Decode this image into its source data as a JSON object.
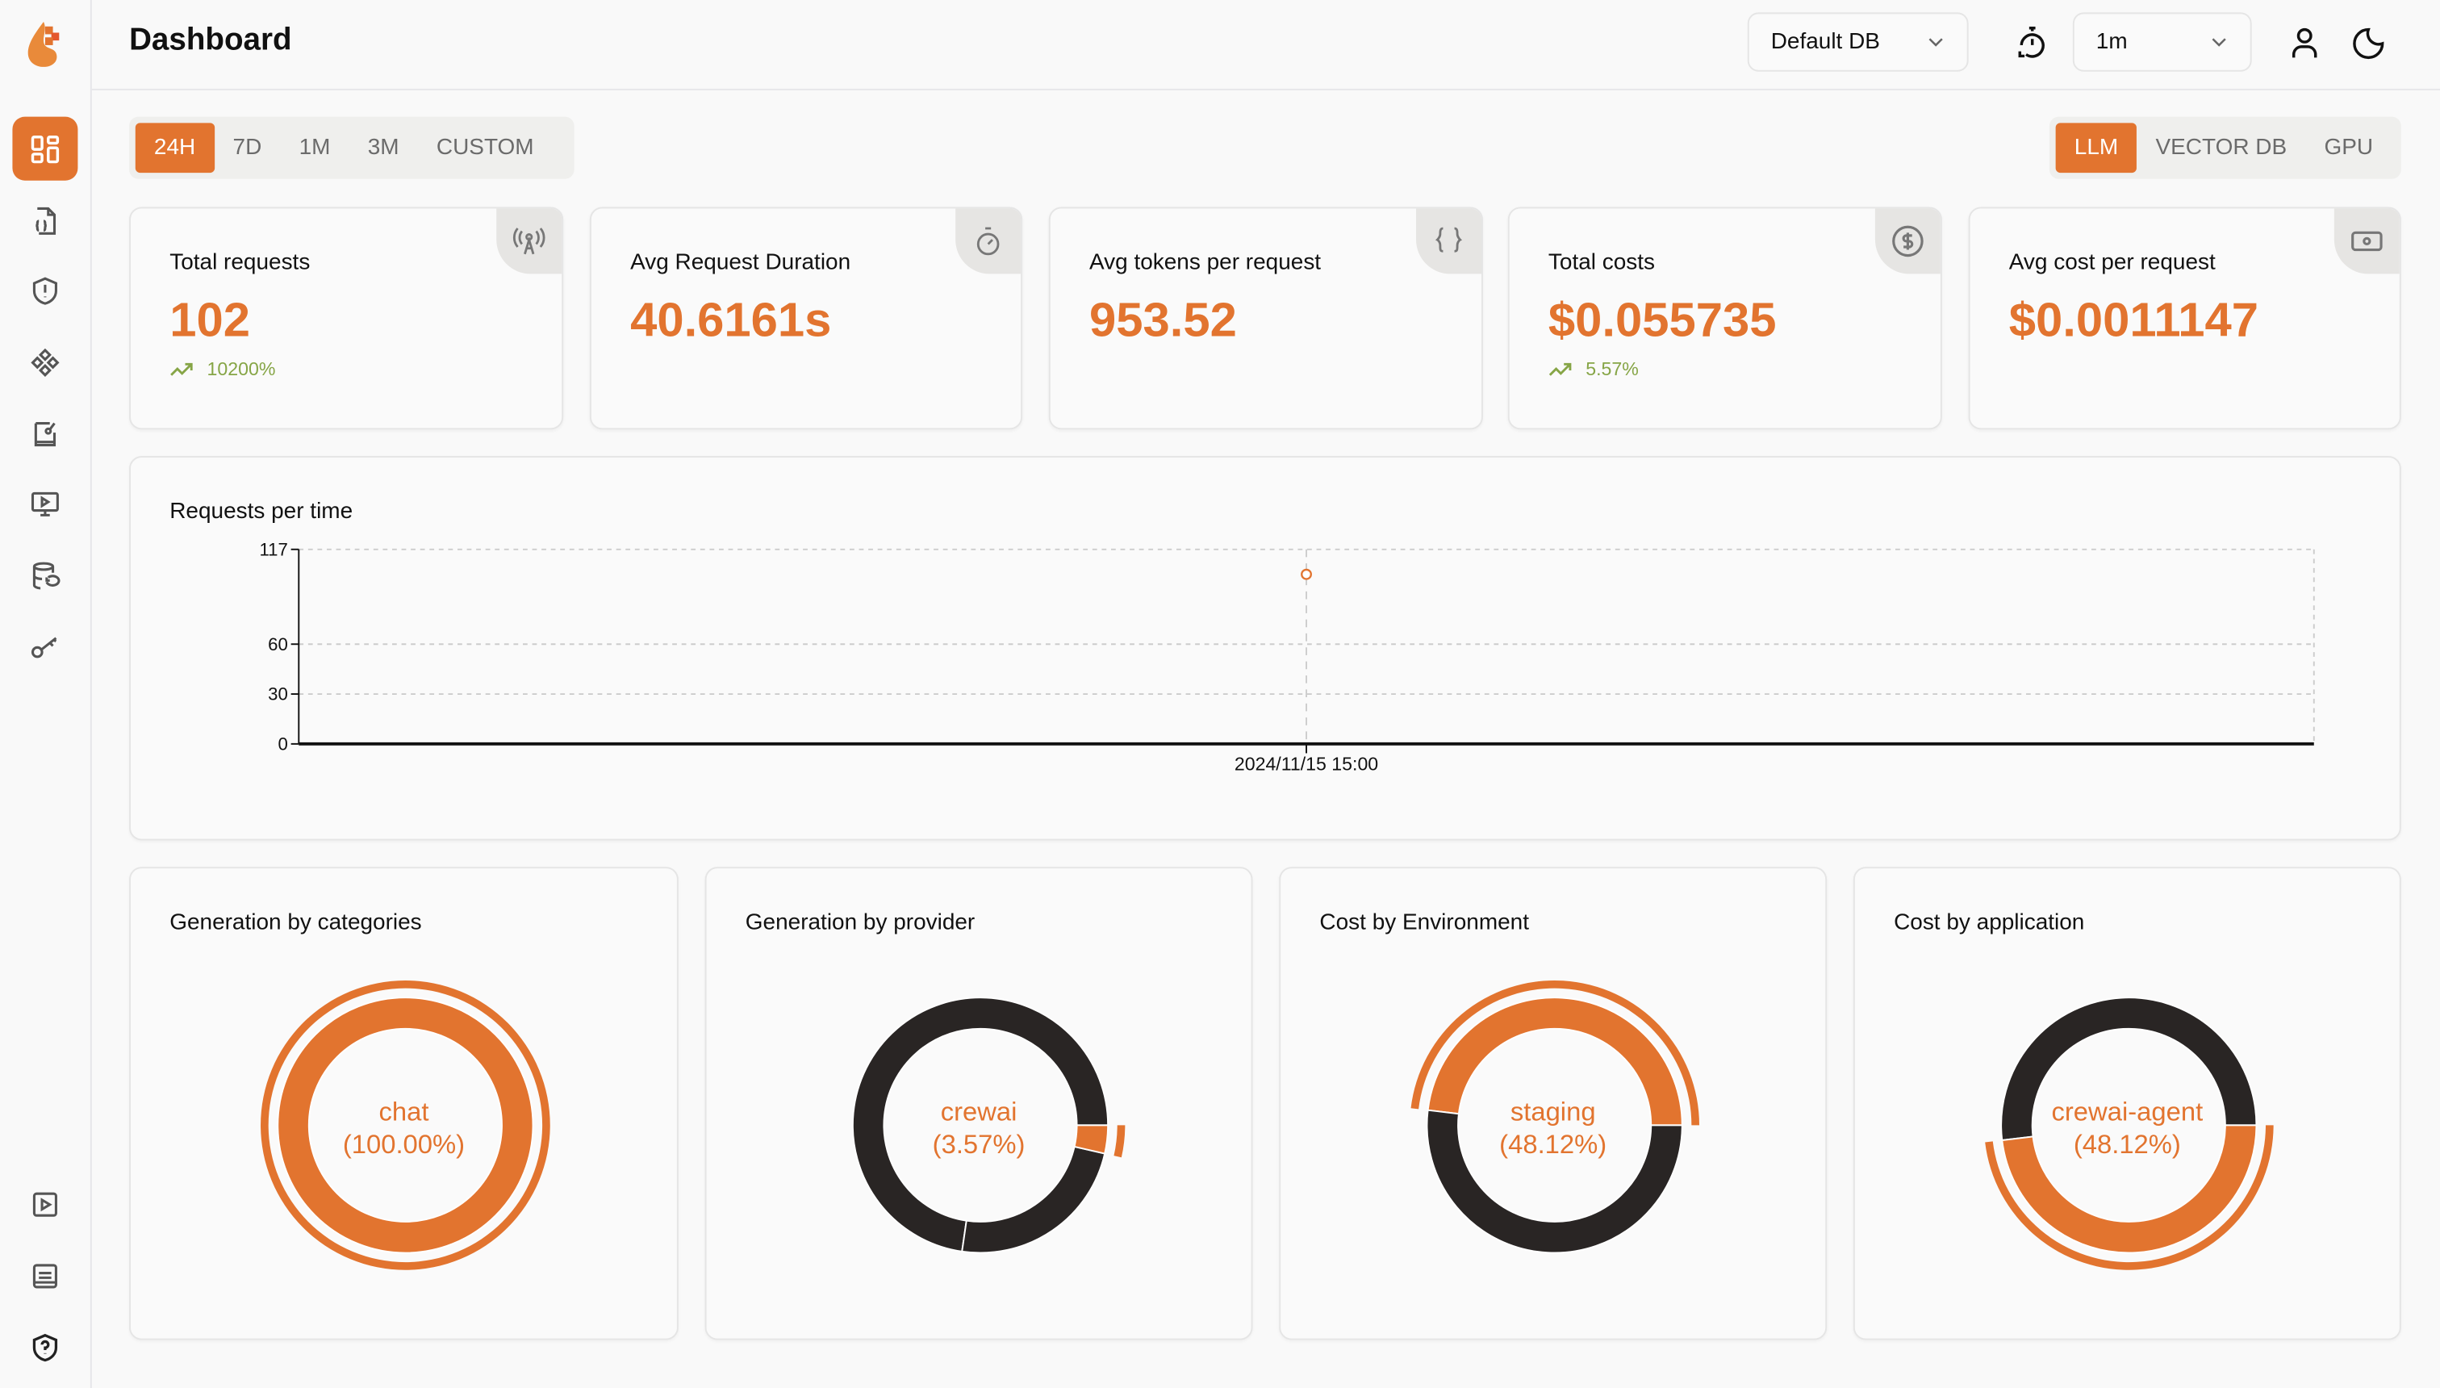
{
  "header": {
    "title": "Dashboard",
    "db_select": "Default DB",
    "refresh_select": "1m"
  },
  "sidebar": {
    "items": [
      {
        "icon": "dashboard-grid-icon",
        "active": true
      },
      {
        "icon": "code-file-icon"
      },
      {
        "icon": "shield-alert-icon"
      },
      {
        "icon": "components-icon"
      },
      {
        "icon": "prompt-book-icon"
      },
      {
        "icon": "monitor-play-icon"
      },
      {
        "icon": "database-history-icon"
      },
      {
        "icon": "key-icon"
      }
    ],
    "bottom_items": [
      {
        "icon": "play-icon"
      },
      {
        "icon": "docs-icon"
      },
      {
        "icon": "shield-help-icon"
      }
    ]
  },
  "time_tabs": [
    "24H",
    "7D",
    "1M",
    "3M",
    "CUSTOM"
  ],
  "time_tab_active": "24H",
  "type_tabs": [
    "LLM",
    "VECTOR DB",
    "GPU"
  ],
  "type_tab_active": "LLM",
  "stats": [
    {
      "label": "Total requests",
      "value": "102",
      "trend": "10200%",
      "icon": "antenna-icon"
    },
    {
      "label": "Avg Request Duration",
      "value": "40.6161s",
      "icon": "timer-icon"
    },
    {
      "label": "Avg tokens per request",
      "value": "953.52",
      "icon": "braces-icon"
    },
    {
      "label": "Total costs",
      "value": "$0.055735",
      "trend": "5.57%",
      "icon": "dollar-circle-icon"
    },
    {
      "label": "Avg cost per request",
      "value": "$0.0011147",
      "icon": "banknote-icon"
    }
  ],
  "colors": {
    "accent": "#E2742F",
    "dark": "#292524",
    "trend_up": "#86A546"
  },
  "chart_data": [
    {
      "type": "line",
      "title": "Requests per time",
      "x": [
        "2024/11/15 15:00"
      ],
      "values": [
        102
      ],
      "yticks": [
        0,
        30,
        60,
        117
      ],
      "ylim": [
        0,
        117
      ],
      "grid": true
    },
    {
      "type": "pie",
      "title": "Generation by categories",
      "active_label": "chat",
      "active_percent": "(100.00%)",
      "slices": [
        {
          "value": 100.0,
          "color": "#E2742F",
          "active": true
        }
      ]
    },
    {
      "type": "pie",
      "title": "Generation by provider",
      "active_label": "crewai",
      "active_percent": "(3.57%)",
      "slices": [
        {
          "value": 72.7,
          "color": "#292524"
        },
        {
          "value": 23.73,
          "color": "#292524"
        },
        {
          "value": 3.57,
          "color": "#E2742F",
          "active": true
        }
      ]
    },
    {
      "type": "pie",
      "title": "Cost by Environment",
      "active_label": "staging",
      "active_percent": "(48.12%)",
      "slices": [
        {
          "value": 48.12,
          "color": "#E2742F",
          "active": true
        },
        {
          "value": 51.88,
          "color": "#292524"
        }
      ]
    },
    {
      "type": "pie",
      "title": "Cost by application",
      "active_label": "crewai-agent",
      "active_percent": "(48.12%)",
      "slices": [
        {
          "value": 51.88,
          "color": "#292524"
        },
        {
          "value": 48.12,
          "color": "#E2742F",
          "active": true
        }
      ]
    }
  ]
}
